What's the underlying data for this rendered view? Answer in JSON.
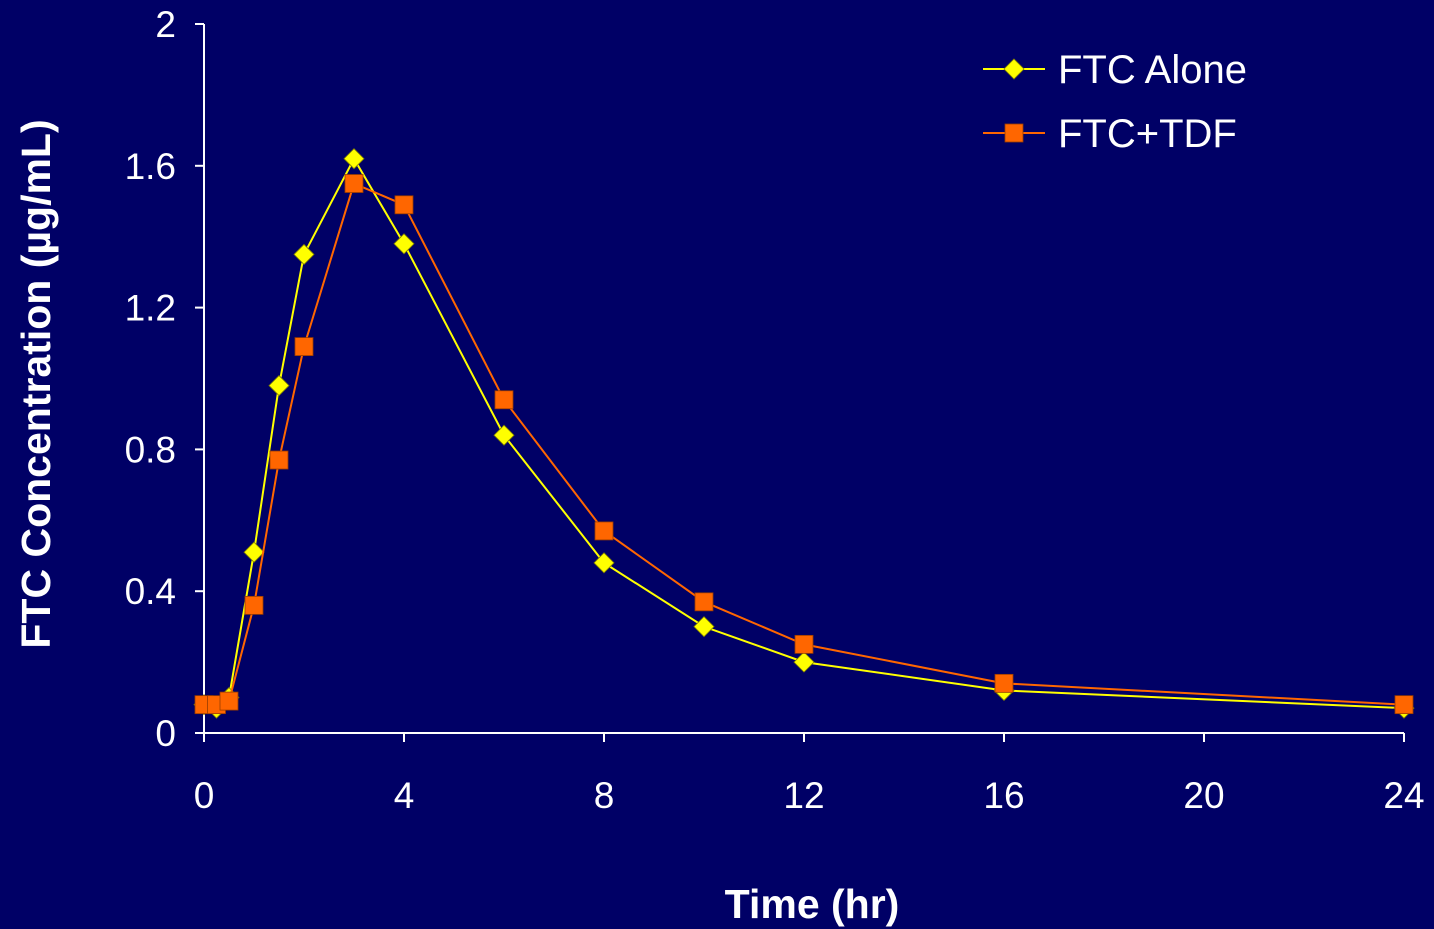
{
  "chart_data": {
    "type": "line",
    "title": "",
    "xlabel": "Time (hr)",
    "ylabel": "FTC Concentration (µg/mL)",
    "xlim": [
      0,
      24
    ],
    "ylim": [
      0,
      2
    ],
    "x_ticks": [
      "0",
      "4",
      "8",
      "12",
      "16",
      "20",
      "24"
    ],
    "y_ticks": [
      "0",
      "0.4",
      "0.8",
      "1.2",
      "1.6",
      "2"
    ],
    "grid": false,
    "legend_position": "top-right",
    "series": [
      {
        "name": "FTC Alone",
        "color": "#ffff00",
        "marker": "diamond",
        "x": [
          0,
          0.25,
          0.5,
          1,
          1.5,
          2,
          3,
          4,
          6,
          8,
          10,
          12,
          16,
          24
        ],
        "y": [
          0.08,
          0.07,
          0.1,
          0.51,
          0.98,
          1.35,
          1.62,
          1.38,
          0.84,
          0.48,
          0.3,
          0.2,
          0.12,
          0.07
        ]
      },
      {
        "name": "FTC+TDF",
        "color": "#ff6600",
        "marker": "square",
        "x": [
          0,
          0.25,
          0.5,
          1,
          1.5,
          2,
          3,
          4,
          6,
          8,
          10,
          12,
          16,
          24
        ],
        "y": [
          0.08,
          0.08,
          0.09,
          0.36,
          0.77,
          1.09,
          1.55,
          1.49,
          0.94,
          0.57,
          0.37,
          0.25,
          0.14,
          0.08
        ]
      }
    ]
  },
  "colors": {
    "background": "#000066",
    "axis": "#ffffff",
    "text": "#ffffff"
  }
}
